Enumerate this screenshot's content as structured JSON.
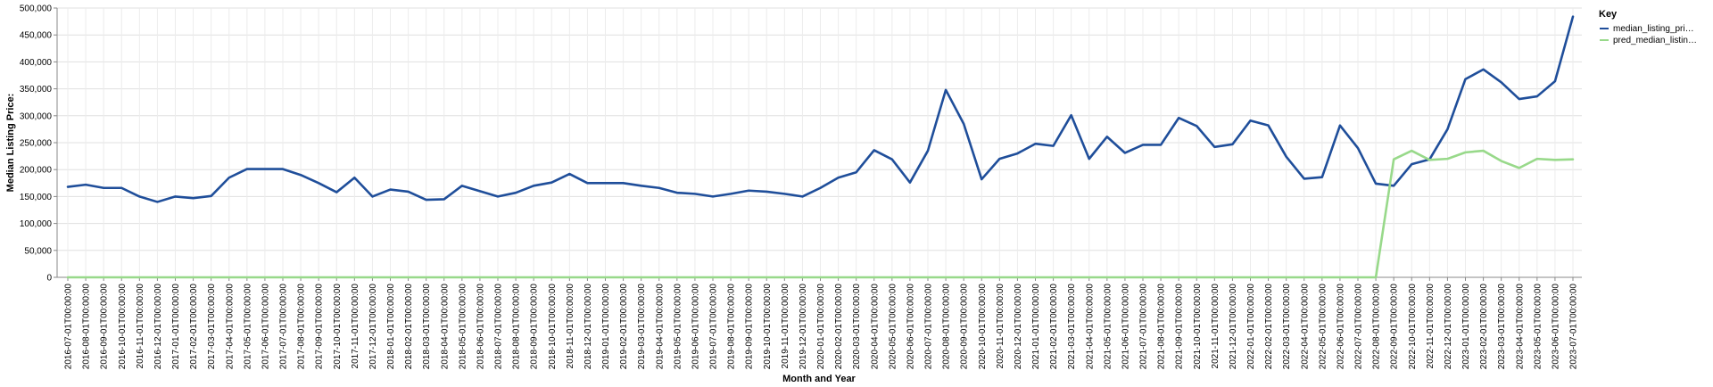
{
  "chart_data": {
    "type": "line",
    "title": "",
    "xlabel": "Month and Year",
    "ylabel": "Median Listing Price:",
    "ylim": [
      0,
      500000
    ],
    "yticks": [
      "0",
      "50,000",
      "100,000",
      "150,000",
      "200,000",
      "250,000",
      "300,000",
      "350,000",
      "400,000",
      "450,000",
      "500,000"
    ],
    "grid": true,
    "legend": {
      "title": "Key",
      "placement": "top-right",
      "entries": [
        "median_listing_pri…",
        "pred_median_listin…"
      ]
    },
    "x": [
      "2016-07-01T00:00:00",
      "2016-08-01T00:00:00",
      "2016-09-01T00:00:00",
      "2016-10-01T00:00:00",
      "2016-11-01T00:00:00",
      "2016-12-01T00:00:00",
      "2017-01-01T00:00:00",
      "2017-02-01T00:00:00",
      "2017-03-01T00:00:00",
      "2017-04-01T00:00:00",
      "2017-05-01T00:00:00",
      "2017-06-01T00:00:00",
      "2017-07-01T00:00:00",
      "2017-08-01T00:00:00",
      "2017-09-01T00:00:00",
      "2017-10-01T00:00:00",
      "2017-11-01T00:00:00",
      "2017-12-01T00:00:00",
      "2018-01-01T00:00:00",
      "2018-02-01T00:00:00",
      "2018-03-01T00:00:00",
      "2018-04-01T00:00:00",
      "2018-05-01T00:00:00",
      "2018-06-01T00:00:00",
      "2018-07-01T00:00:00",
      "2018-08-01T00:00:00",
      "2018-09-01T00:00:00",
      "2018-10-01T00:00:00",
      "2018-11-01T00:00:00",
      "2018-12-01T00:00:00",
      "2019-01-01T00:00:00",
      "2019-02-01T00:00:00",
      "2019-03-01T00:00:00",
      "2019-04-01T00:00:00",
      "2019-05-01T00:00:00",
      "2019-06-01T00:00:00",
      "2019-07-01T00:00:00",
      "2019-08-01T00:00:00",
      "2019-09-01T00:00:00",
      "2019-10-01T00:00:00",
      "2019-11-01T00:00:00",
      "2019-12-01T00:00:00",
      "2020-01-01T00:00:00",
      "2020-02-01T00:00:00",
      "2020-03-01T00:00:00",
      "2020-04-01T00:00:00",
      "2020-05-01T00:00:00",
      "2020-06-01T00:00:00",
      "2020-07-01T00:00:00",
      "2020-08-01T00:00:00",
      "2020-09-01T00:00:00",
      "2020-10-01T00:00:00",
      "2020-11-01T00:00:00",
      "2020-12-01T00:00:00",
      "2021-01-01T00:00:00",
      "2021-02-01T00:00:00",
      "2021-03-01T00:00:00",
      "2021-04-01T00:00:00",
      "2021-05-01T00:00:00",
      "2021-06-01T00:00:00",
      "2021-07-01T00:00:00",
      "2021-08-01T00:00:00",
      "2021-09-01T00:00:00",
      "2021-10-01T00:00:00",
      "2021-11-01T00:00:00",
      "2021-12-01T00:00:00",
      "2022-01-01T00:00:00",
      "2022-02-01T00:00:00",
      "2022-03-01T00:00:00",
      "2022-04-01T00:00:00",
      "2022-05-01T00:00:00",
      "2022-06-01T00:00:00",
      "2022-07-01T00:00:00",
      "2022-08-01T00:00:00",
      "2022-09-01T00:00:00",
      "2022-10-01T00:00:00",
      "2022-11-01T00:00:00",
      "2022-12-01T00:00:00",
      "2023-01-01T00:00:00",
      "2023-02-01T00:00:00",
      "2023-03-01T00:00:00",
      "2023-04-01T00:00:00",
      "2023-05-01T00:00:00",
      "2023-06-01T00:00:00",
      "2023-07-01T00:00:00"
    ],
    "series": [
      {
        "name": "median_listing_pri…",
        "color": "#1f4e9a",
        "values": [
          168000,
          172000,
          166000,
          166000,
          150000,
          140000,
          150000,
          147000,
          151000,
          185000,
          201000,
          201000,
          201000,
          190000,
          175000,
          158000,
          185000,
          150000,
          163000,
          159000,
          144000,
          145000,
          170000,
          160000,
          150000,
          157000,
          170000,
          176000,
          192000,
          175000,
          175000,
          175000,
          170000,
          166000,
          157000,
          155000,
          150000,
          155000,
          161000,
          159000,
          155000,
          150000,
          166000,
          185000,
          195000,
          236000,
          219000,
          176000,
          235000,
          348000,
          285000,
          182000,
          220000,
          230000,
          248000,
          244000,
          301000,
          220000,
          261000,
          231000,
          246000,
          246000,
          296000,
          281000,
          242000,
          247000,
          291000,
          282000,
          224000,
          183000,
          186000,
          282000,
          240000,
          174000,
          170000,
          210000,
          219000,
          275000,
          368000,
          386000,
          362000,
          331000,
          336000,
          364000,
          484000
        ]
      },
      {
        "name": "pred_median_listin…",
        "color": "#98d98a",
        "values": [
          0,
          0,
          0,
          0,
          0,
          0,
          0,
          0,
          0,
          0,
          0,
          0,
          0,
          0,
          0,
          0,
          0,
          0,
          0,
          0,
          0,
          0,
          0,
          0,
          0,
          0,
          0,
          0,
          0,
          0,
          0,
          0,
          0,
          0,
          0,
          0,
          0,
          0,
          0,
          0,
          0,
          0,
          0,
          0,
          0,
          0,
          0,
          0,
          0,
          0,
          0,
          0,
          0,
          0,
          0,
          0,
          0,
          0,
          0,
          0,
          0,
          0,
          0,
          0,
          0,
          0,
          0,
          0,
          0,
          0,
          0,
          0,
          0,
          0,
          219000,
          235000,
          218000,
          220000,
          232000,
          235000,
          216000,
          203000,
          220000,
          218000,
          219000
        ]
      }
    ]
  }
}
